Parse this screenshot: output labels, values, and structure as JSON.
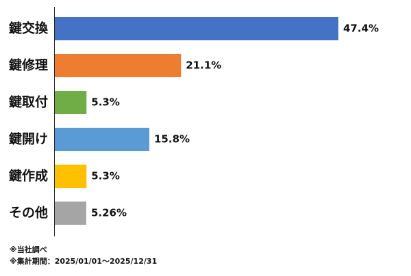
{
  "chart_data": {
    "type": "hbar",
    "categories": [
      "鍵交換",
      "鍵修理",
      "鍵取付",
      "鍵開け",
      "鍵作成",
      "その他"
    ],
    "values": [
      47.4,
      21.1,
      5.3,
      15.8,
      5.3,
      5.26
    ],
    "value_labels": [
      "47.4%",
      "21.1%",
      "5.3%",
      "15.8%",
      "5.3%",
      "5.26%"
    ],
    "colors": [
      "#4472c4",
      "#ed7d31",
      "#70ad47",
      "#5b9bd5",
      "#ffc000",
      "#a5a5a5"
    ],
    "notes": [
      "※当社調べ",
      "※集計期間：2025/01/01〜2025/12/31"
    ]
  }
}
